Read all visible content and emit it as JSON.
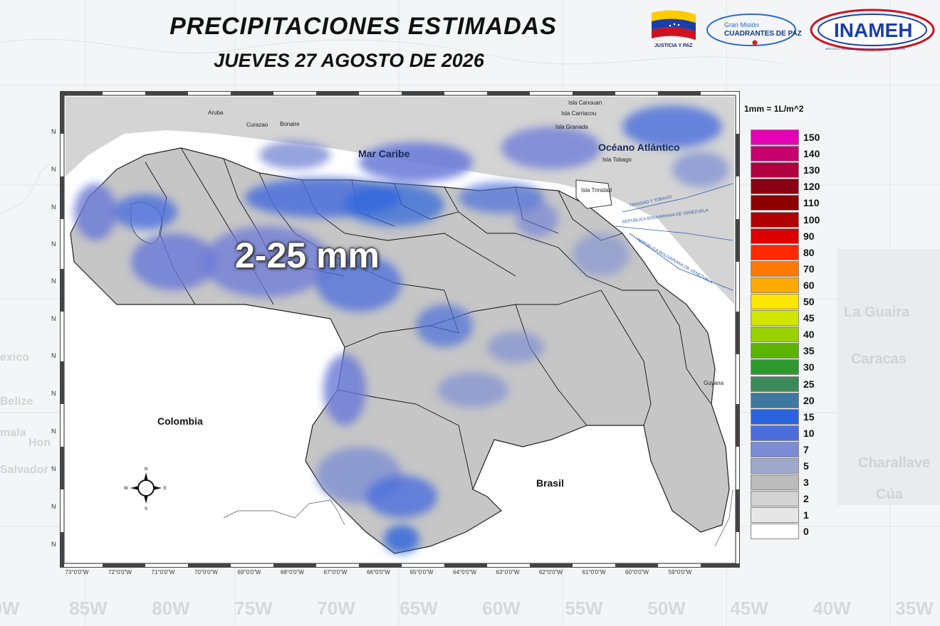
{
  "header": {
    "title": "PRECIPITACIONES ESTIMADAS",
    "subtitle": "JUEVES 27 AGOSTO DE 2026"
  },
  "logos": {
    "flag_caption": "JUSTICIA Y PAZ",
    "mision_line1": "Gran Misión",
    "mision_line2": "CUADRANTES DE PAZ",
    "inameh_text": "INAMEH",
    "inameh_caption": "INSTITUTO NACIONAL DE METEOROLOGÍA E HIDROLOGÍA"
  },
  "map": {
    "highlight_range": "2-25 mm",
    "regions": {
      "colombia": "Colombia",
      "brasil": "Brasil",
      "mar_caribe": "Mar Caribe",
      "oceano": "Océano Atlántico",
      "guyana": "Guyana"
    },
    "islands": [
      "Aruba",
      "Curazao",
      "Bonaire",
      "Isla Carriacou",
      "Isla Canouan",
      "Isla Granada",
      "Isla Tobago",
      "Isla Trinidad"
    ],
    "border_texts": [
      "TRINIDAD Y TOBAGO",
      "REPÚBLICA BOLIVARIANA DE VENEZUELA"
    ],
    "compass": {
      "n": "N",
      "s": "S",
      "e": "E",
      "w": "W"
    },
    "lon_labels": [
      "73°0'0\"W",
      "72°0'0\"W",
      "71°0'0\"W",
      "70°0'0\"W",
      "69°0'0\"W",
      "68°0'0\"W",
      "67°0'0\"W",
      "66°0'0\"W",
      "65°0'0\"W",
      "64°0'0\"W",
      "63°0'0\"W",
      "62°0'0\"W",
      "61°0'0\"W",
      "60°0'0\"W",
      "59°0'0\"W"
    ],
    "lat_label": "N"
  },
  "legend": {
    "unit": "1mm = 1L/m^2",
    "items": [
      {
        "value": "150",
        "color": "#e600b4"
      },
      {
        "value": "140",
        "color": "#c8006e"
      },
      {
        "value": "130",
        "color": "#b00040"
      },
      {
        "value": "120",
        "color": "#8a0014"
      },
      {
        "value": "110",
        "color": "#8c0000"
      },
      {
        "value": "100",
        "color": "#b00000"
      },
      {
        "value": "90",
        "color": "#dc0000"
      },
      {
        "value": "80",
        "color": "#ff2a00"
      },
      {
        "value": "70",
        "color": "#ff7800"
      },
      {
        "value": "60",
        "color": "#ffaa00"
      },
      {
        "value": "50",
        "color": "#ffe600"
      },
      {
        "value": "45",
        "color": "#d2e600"
      },
      {
        "value": "40",
        "color": "#9ad200"
      },
      {
        "value": "35",
        "color": "#5ab400"
      },
      {
        "value": "30",
        "color": "#2e9a2e"
      },
      {
        "value": "25",
        "color": "#3c8a5a"
      },
      {
        "value": "20",
        "color": "#3c78a0"
      },
      {
        "value": "15",
        "color": "#2a64dc"
      },
      {
        "value": "10",
        "color": "#4a6edc"
      },
      {
        "value": "7",
        "color": "#7a8cd4"
      },
      {
        "value": "5",
        "color": "#a0a8cc"
      },
      {
        "value": "3",
        "color": "#bcbcbc"
      },
      {
        "value": "2",
        "color": "#d2d2d2"
      },
      {
        "value": "1",
        "color": "#e6e6e6"
      },
      {
        "value": "0",
        "color": "#ffffff"
      }
    ]
  },
  "background": {
    "lon_labels": [
      "0W",
      "85W",
      "80W",
      "75W",
      "70W",
      "65W",
      "60W",
      "55W",
      "50W",
      "45W",
      "40W",
      "35W"
    ],
    "cities": [
      "La Guaira",
      "Caracas",
      "Charallave",
      "Cúa",
      "Belize",
      "exico",
      "Hon",
      "Salvador",
      "mala"
    ]
  }
}
